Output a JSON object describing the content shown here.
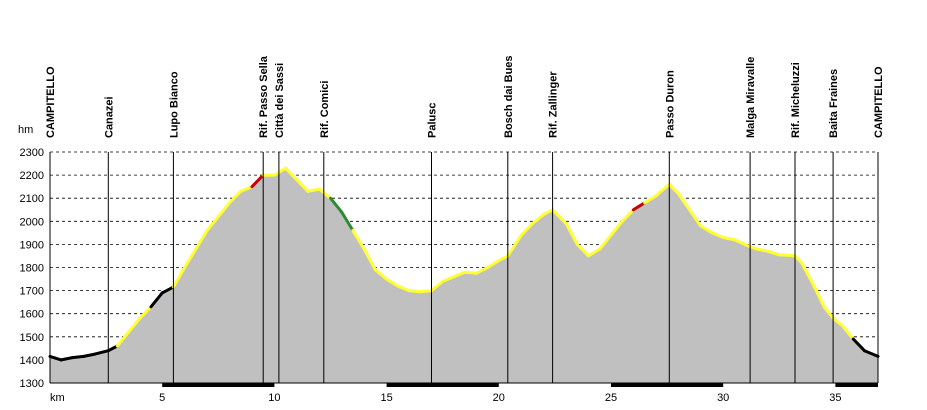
{
  "chart_data": {
    "type": "area",
    "title": "",
    "xlabel": "km",
    "ylabel": "hm",
    "xlim": [
      0,
      36.9
    ],
    "ylim": [
      1300,
      2300
    ],
    "x_ticks": [
      5,
      10,
      15,
      20,
      25,
      30,
      35
    ],
    "y_ticks": [
      1300,
      1400,
      1500,
      1600,
      1700,
      1800,
      1900,
      2000,
      2100,
      2200,
      2300
    ],
    "grid": "horizontal dashed",
    "colors": {
      "fill": "#c0c0c0",
      "outline_default": "#ffff33",
      "outline_descent_steep": "#000000",
      "outline_segment_green": "#2e8b2e",
      "outline_segment_red": "#cc0000",
      "axis": "#000000"
    },
    "places": [
      {
        "name": "CAMPITELLO",
        "km": 0.0
      },
      {
        "name": "Canazei",
        "km": 2.6
      },
      {
        "name": "Lupo Bianco",
        "km": 5.5
      },
      {
        "name": "Rif. Passo Sella",
        "km": 9.5
      },
      {
        "name": "Città dei Sassi",
        "km": 10.2
      },
      {
        "name": "Rif. Comici",
        "km": 12.2
      },
      {
        "name": "Palusc",
        "km": 17.0
      },
      {
        "name": "Bosch dai Bues",
        "km": 20.4
      },
      {
        "name": "Rif. Zallinger",
        "km": 22.4
      },
      {
        "name": "Passo Duron",
        "km": 27.6
      },
      {
        "name": "Malga Miravalle",
        "km": 31.2
      },
      {
        "name": "Rif. Micheluzzi",
        "km": 33.2
      },
      {
        "name": "Baita Fraines",
        "km": 34.9
      },
      {
        "name": "CAMPITELLO",
        "km": 36.9
      }
    ],
    "series": [
      {
        "x": [
          0,
          0.5,
          1.0,
          1.5,
          2.0,
          2.6,
          3.0,
          3.5,
          4.0,
          4.5,
          5.0,
          5.5,
          6.0,
          6.5,
          7.0,
          7.5,
          8.0,
          8.5,
          9.0,
          9.5,
          10.0,
          10.5,
          11.0,
          11.5,
          12.0,
          12.5,
          13.0,
          13.5,
          14.0,
          14.5,
          15.0,
          15.5,
          16.0,
          16.5,
          17.0,
          17.5,
          18.0,
          18.5,
          19.0,
          19.5,
          20.0,
          20.4,
          21.0,
          21.5,
          22.0,
          22.4,
          23.0,
          23.5,
          24.0,
          24.5,
          25.0,
          25.5,
          26.0,
          26.5,
          27.0,
          27.6,
          28.0,
          28.5,
          29.0,
          29.5,
          30.0,
          30.5,
          31.2,
          31.5,
          32.0,
          32.5,
          33.2,
          33.5,
          34.0,
          34.5,
          34.9,
          35.3,
          35.8,
          36.3,
          36.9
        ],
        "y": [
          1415,
          1400,
          1410,
          1415,
          1425,
          1440,
          1460,
          1520,
          1580,
          1630,
          1690,
          1715,
          1800,
          1880,
          1960,
          2020,
          2080,
          2130,
          2150,
          2200,
          2200,
          2230,
          2180,
          2130,
          2140,
          2100,
          2040,
          1960,
          1880,
          1790,
          1750,
          1720,
          1700,
          1695,
          1700,
          1740,
          1760,
          1780,
          1775,
          1800,
          1830,
          1850,
          1940,
          1990,
          2030,
          2050,
          1990,
          1900,
          1850,
          1880,
          1940,
          2000,
          2050,
          2080,
          2110,
          2160,
          2120,
          2050,
          1980,
          1950,
          1930,
          1920,
          1890,
          1880,
          1870,
          1855,
          1850,
          1820,
          1730,
          1630,
          1580,
          1550,
          1490,
          1440,
          1415
        ]
      }
    ]
  }
}
